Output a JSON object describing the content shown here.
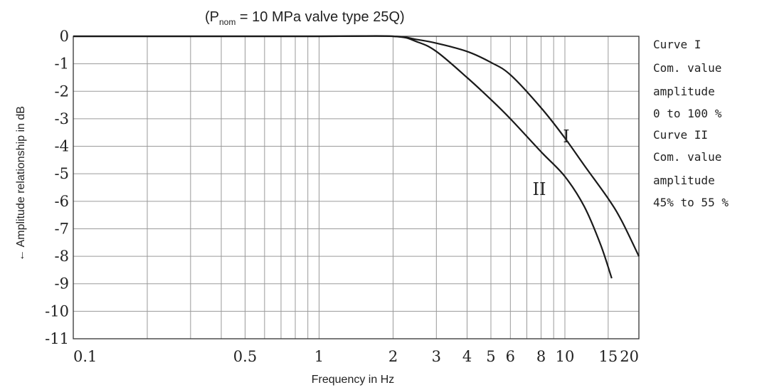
{
  "chart_data": {
    "type": "line",
    "title": "(P",
    "title_sub": "nom",
    "title_rest": " = 10 MPa valve type 25Q)",
    "xlabel": "Frequency in Hz",
    "ylabel": "← Amplitude relationship in dB",
    "x_scale": "log",
    "xlim": [
      0.1,
      20
    ],
    "ylim": [
      -11,
      0
    ],
    "grid": true,
    "x_tick_labels": [
      {
        "value": 0.1,
        "label": "0.1"
      },
      {
        "value": 0.5,
        "label": "0.5"
      },
      {
        "value": 1,
        "label": "1"
      },
      {
        "value": 2,
        "label": "2"
      },
      {
        "value": 3,
        "label": "3"
      },
      {
        "value": 4,
        "label": "4"
      },
      {
        "value": 5,
        "label": "5"
      },
      {
        "value": 6,
        "label": "6"
      },
      {
        "value": 8,
        "label": "8"
      },
      {
        "value": 10,
        "label": "10"
      },
      {
        "value": 15,
        "label": "15"
      },
      {
        "value": 20,
        "label": "20"
      }
    ],
    "x_gridlines": [
      0.1,
      0.2,
      0.3,
      0.4,
      0.5,
      0.6,
      0.7,
      0.8,
      0.9,
      1,
      2,
      3,
      4,
      5,
      6,
      7,
      8,
      9,
      10,
      15,
      20
    ],
    "y_ticks": [
      0,
      -1,
      -2,
      -3,
      -4,
      -5,
      -6,
      -7,
      -8,
      -9,
      -10,
      -11
    ],
    "y_tick_labels": [
      "0",
      "-1",
      "-2",
      "-3",
      "-4",
      "-5",
      "-6",
      "-7",
      "-8",
      "-9",
      "-10",
      "-11"
    ],
    "series": [
      {
        "name": "I",
        "x": [
          0.1,
          1,
          2,
          2.5,
          3,
          4,
          5,
          6,
          8,
          10,
          12,
          15,
          17,
          20
        ],
        "y": [
          0,
          0,
          0,
          -0.12,
          -0.25,
          -0.55,
          -0.95,
          -1.4,
          -2.6,
          -3.7,
          -4.7,
          -5.9,
          -6.7,
          -8.0
        ]
      },
      {
        "name": "II",
        "x": [
          0.1,
          1,
          2,
          2.5,
          3,
          4,
          5,
          6,
          8,
          10,
          12,
          14,
          15.5
        ],
        "y": [
          0,
          0,
          0,
          -0.2,
          -0.55,
          -1.5,
          -2.3,
          -3.0,
          -4.2,
          -5.1,
          -6.2,
          -7.6,
          -8.8
        ]
      }
    ],
    "legend": {
      "placement": "right",
      "lines": [
        "Curve I",
        "Com. value",
        "amplitude",
        "0 to 100 %",
        "Curve II",
        "Com. value",
        "amplitude",
        "45% to 55 %"
      ]
    }
  }
}
